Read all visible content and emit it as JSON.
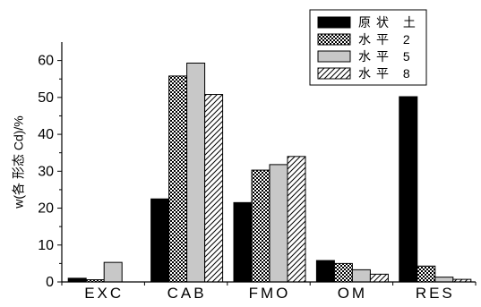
{
  "chart_data": {
    "type": "bar",
    "ylabel": "w(各 形态 Cd)/%",
    "ylim": [
      0,
      65
    ],
    "yticks": [
      0,
      10,
      20,
      30,
      40,
      50,
      60
    ],
    "categories": [
      "EXC",
      "CAB",
      "FMO",
      "OM",
      "RES"
    ],
    "series": [
      {
        "name": "原状 土",
        "fill": "solid",
        "values": [
          1.0,
          22.5,
          21.5,
          5.8,
          50.2
        ]
      },
      {
        "name": "水平 2",
        "fill": "checker",
        "values": [
          0.6,
          55.8,
          30.3,
          5.0,
          4.3
        ]
      },
      {
        "name": "水平 5",
        "fill": "gray",
        "values": [
          5.3,
          59.3,
          31.8,
          3.3,
          1.3
        ]
      },
      {
        "name": "水平 8",
        "fill": "hatch",
        "values": [
          0.0,
          50.8,
          34.0,
          2.1,
          0.7
        ]
      }
    ],
    "legend_position": "top-right",
    "grid": false,
    "colors": {
      "solid": "#000000",
      "gray": "#c8c8c8",
      "pattern_fg": "#000000",
      "pattern_bg": "#ffffff"
    }
  }
}
